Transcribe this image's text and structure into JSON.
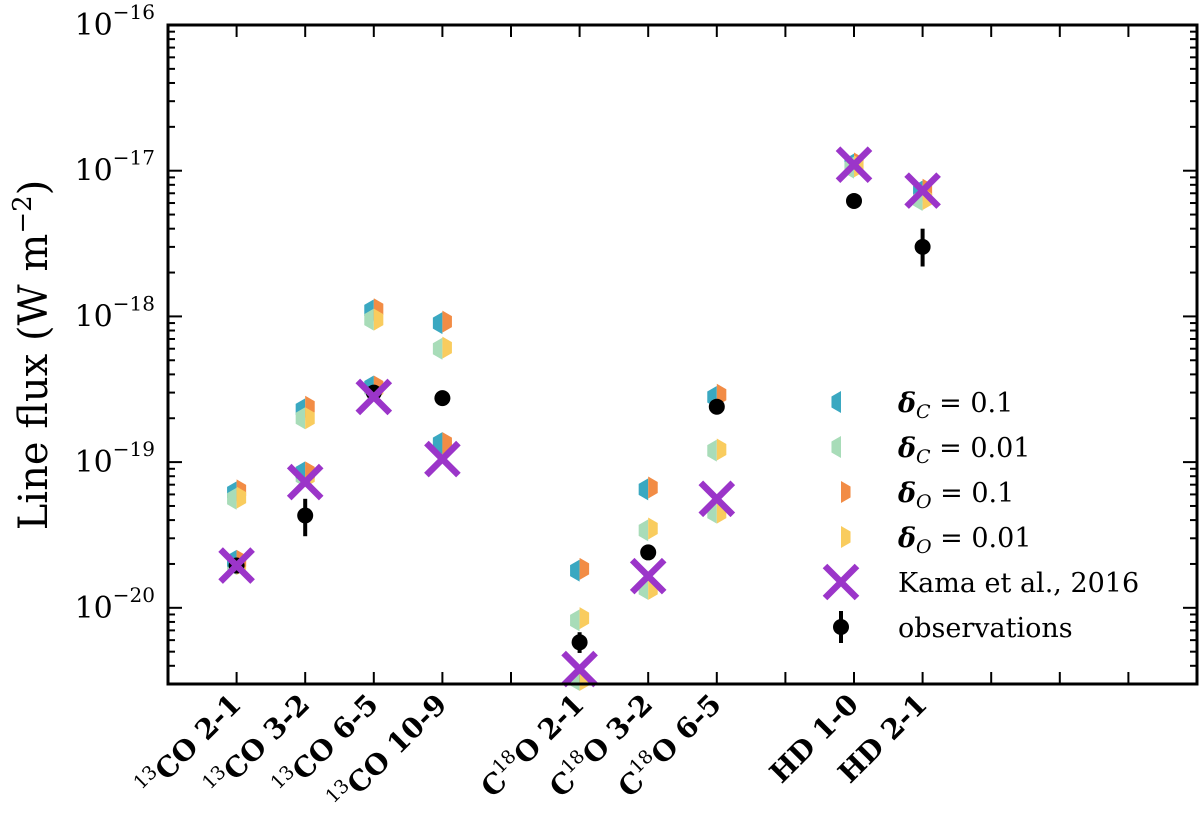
{
  "chart_data": {
    "type": "scatter",
    "ylabel": "Line flux (W m",
    "ylabel_sup": "−2",
    "ylabel_close": ")",
    "yscale": "log",
    "ylim": [
      3e-21,
      1e-16
    ],
    "y_ticks": [
      {
        "value": 1e-20,
        "base": "10",
        "exp": "−20"
      },
      {
        "value": 1e-19,
        "base": "10",
        "exp": "−19"
      },
      {
        "value": 1e-18,
        "base": "10",
        "exp": "−18"
      },
      {
        "value": 1e-17,
        "base": "10",
        "exp": "−17"
      },
      {
        "value": 1e-16,
        "base": "10",
        "exp": "−16"
      }
    ],
    "x_positions": [
      1,
      2,
      3,
      4,
      5,
      6,
      7,
      8,
      9,
      10,
      11,
      12,
      13,
      14
    ],
    "categories": [
      {
        "x": 1,
        "pre": "",
        "sup": "13",
        "main": "CO 2-1"
      },
      {
        "x": 2,
        "pre": "",
        "sup": "13",
        "main": "CO 3-2"
      },
      {
        "x": 3,
        "pre": "",
        "sup": "13",
        "main": "CO 6-5"
      },
      {
        "x": 4,
        "pre": "",
        "sup": "13",
        "main": "CO 10-9"
      },
      {
        "x": 6,
        "pre": "C",
        "sup": "18",
        "main": "O 2-1"
      },
      {
        "x": 7,
        "pre": "C",
        "sup": "18",
        "main": "O 3-2"
      },
      {
        "x": 8,
        "pre": "C",
        "sup": "18",
        "main": "O 6-5"
      },
      {
        "x": 10,
        "pre": "",
        "sup": "",
        "main": "HD 1-0"
      },
      {
        "x": 11,
        "pre": "",
        "sup": "",
        "main": "HD 2-1"
      }
    ],
    "series": [
      {
        "key": "dC_0.1",
        "legend_sym": "δ",
        "legend_sub": "C",
        "legend_val": " = 0.1",
        "color": "#3aa8c1",
        "marker": "half-left",
        "points": [
          [
            1,
            6.2e-20
          ],
          [
            2,
            2.3e-19
          ],
          [
            3,
            1.1e-18
          ],
          [
            4,
            9e-19
          ],
          [
            6,
            1.8e-20
          ],
          [
            7,
            6.5e-20
          ],
          [
            8,
            2.8e-19
          ],
          [
            10,
            1.1e-17
          ],
          [
            11,
            7.2e-18
          ]
        ]
      },
      {
        "key": "dC_0.01",
        "legend_sym": "δ",
        "legend_sub": "C",
        "legend_val": " = 0.01",
        "color": "#a8dcb8",
        "marker": "half-left",
        "points": [
          [
            1,
            5.6e-20
          ],
          [
            2,
            2e-19
          ],
          [
            3,
            9.5e-19
          ],
          [
            4,
            6e-19
          ],
          [
            6,
            8.2e-21
          ],
          [
            7,
            3.4e-20
          ],
          [
            8,
            1.2e-19
          ],
          [
            10,
            1.05e-17
          ],
          [
            11,
            6.3e-18
          ]
        ]
      },
      {
        "key": "dO_0.1",
        "legend_sym": "δ",
        "legend_sub": "O",
        "legend_val": " = 0.1",
        "color": "#f28c45",
        "marker": "half-right",
        "points": [
          [
            1,
            6.4e-20
          ],
          [
            2,
            2.4e-19
          ],
          [
            3,
            1.12e-18
          ],
          [
            4,
            9.2e-19
          ],
          [
            6,
            1.85e-20
          ],
          [
            7,
            6.7e-20
          ],
          [
            8,
            2.9e-19
          ],
          [
            10,
            1.12e-17
          ],
          [
            11,
            7.4e-18
          ]
        ]
      },
      {
        "key": "dO_0.01",
        "legend_sym": "δ",
        "legend_sub": "O",
        "legend_val": " = 0.01",
        "color": "#f9cc5e",
        "marker": "half-right",
        "points": [
          [
            1,
            5.7e-20
          ],
          [
            2,
            2e-19
          ],
          [
            3,
            9.5e-19
          ],
          [
            4,
            6.1e-19
          ],
          [
            6,
            8.5e-21
          ],
          [
            7,
            3.5e-20
          ],
          [
            8,
            1.22e-19
          ],
          [
            10,
            1.07e-17
          ],
          [
            11,
            6.4e-18
          ]
        ]
      },
      {
        "key": "dC_0.01_low",
        "color": "#a8dcb8",
        "marker": "half-left",
        "points": [
          [
            1,
            2e-20
          ],
          [
            2,
            8e-20
          ],
          [
            3,
            3.2e-19
          ],
          [
            4,
            1.3e-19
          ],
          [
            6,
            3.2e-21
          ],
          [
            7,
            1.35e-20
          ],
          [
            8,
            4.5e-20
          ]
        ]
      },
      {
        "key": "dO_0.01_low",
        "color": "#f9cc5e",
        "marker": "half-right",
        "points": [
          [
            1,
            2e-20
          ],
          [
            2,
            8e-20
          ],
          [
            3,
            3.2e-19
          ],
          [
            4,
            1.3e-19
          ],
          [
            6,
            3.2e-21
          ],
          [
            7,
            1.35e-20
          ],
          [
            8,
            4.5e-20
          ]
        ]
      },
      {
        "key": "dC_0.1_low",
        "color": "#3aa8c1",
        "marker": "half-left",
        "points": [
          [
            1,
            2.1e-20
          ],
          [
            2,
            8.5e-20
          ],
          [
            3,
            3.3e-19
          ],
          [
            4,
            1.35e-19
          ]
        ]
      },
      {
        "key": "dO_0.1_low",
        "color": "#f28c45",
        "marker": "half-right",
        "points": [
          [
            1,
            2.1e-20
          ],
          [
            2,
            8.5e-20
          ],
          [
            3,
            3.3e-19
          ],
          [
            4,
            1.35e-19
          ]
        ]
      }
    ],
    "kama": {
      "legend": "Kama et al., 2016",
      "color": "#9b35c9",
      "points": [
        [
          1,
          1.95e-20
        ],
        [
          2,
          7.3e-20
        ],
        [
          3,
          2.8e-19
        ],
        [
          4,
          1.05e-19
        ],
        [
          6,
          3.8e-21
        ],
        [
          7,
          1.65e-20
        ],
        [
          8,
          5.6e-20
        ],
        [
          10,
          1.1e-17
        ],
        [
          11,
          7.3e-18
        ]
      ]
    },
    "observations": {
      "legend": "observations",
      "color": "#000000",
      "points": [
        {
          "x": 1,
          "y": 1.95e-20,
          "lo": 1.85e-20,
          "hi": 2.05e-20
        },
        {
          "x": 2,
          "y": 4.3e-20,
          "lo": 3.1e-20,
          "hi": 5.6e-20
        },
        {
          "x": 3,
          "y": 3e-19,
          "lo": 2.8e-19,
          "hi": 3.2e-19
        },
        {
          "x": 4,
          "y": 2.75e-19,
          "lo": 2.45e-19,
          "hi": 3.05e-19
        },
        {
          "x": 6,
          "y": 5.8e-21,
          "lo": 4.9e-21,
          "hi": 6.8e-21
        },
        {
          "x": 7,
          "y": 2.4e-20,
          "lo": 2.25e-20,
          "hi": 2.55e-20
        },
        {
          "x": 8,
          "y": 2.4e-19,
          "lo": 2.3e-19,
          "hi": 2.5e-19
        },
        {
          "x": 10,
          "y": 6.2e-18,
          "lo": 5.8e-18,
          "hi": 6.6e-18
        },
        {
          "x": 11,
          "y": 3e-18,
          "lo": 2.2e-18,
          "hi": 4e-18
        }
      ]
    },
    "legend_order": [
      "dC_0.1",
      "dC_0.01",
      "dO_0.1",
      "dO_0.01",
      "kama",
      "observations"
    ],
    "legend_position": "right"
  }
}
